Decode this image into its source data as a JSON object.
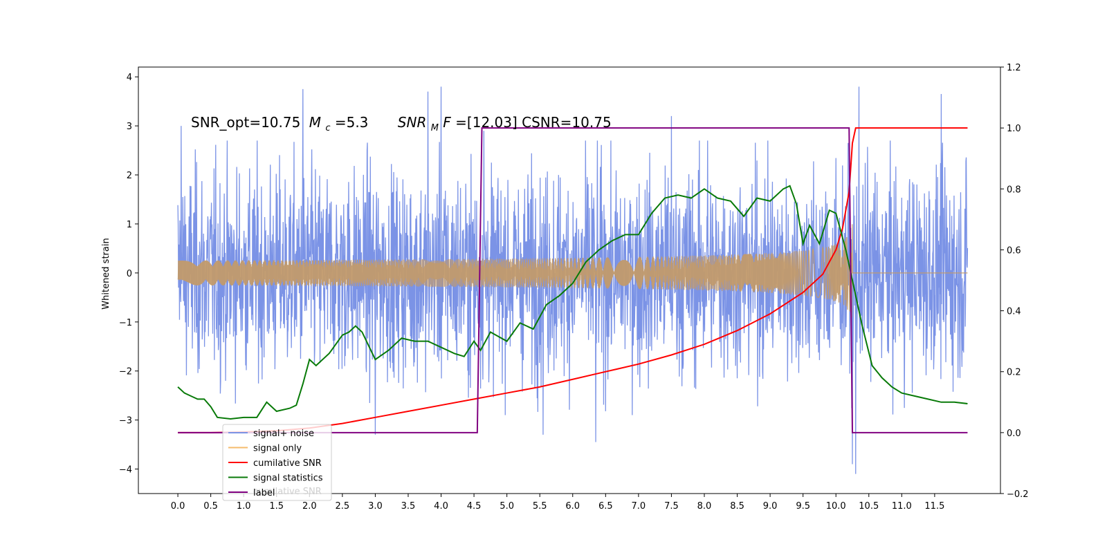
{
  "chart_data": {
    "type": "line",
    "ylabel": "Whitened strain",
    "xlim": [
      -0.6,
      12.5
    ],
    "ylim": [
      -4.5,
      4.2
    ],
    "y2lim": [
      -0.2,
      1.2
    ],
    "x_ticks": [
      "0.0",
      "0.5",
      "1.0",
      "1.5",
      "2.0",
      "2.5",
      "3.0",
      "3.5",
      "4.0",
      "4.5",
      "5.0",
      "5.5",
      "6.0",
      "6.5",
      "7.0",
      "7.5",
      "8.0",
      "8.5",
      "9.0",
      "9.5",
      "10.0",
      "10.5",
      "11.0",
      "11.5"
    ],
    "y_ticks": [
      "4",
      "3",
      "2",
      "1",
      "0",
      "−1",
      "−2",
      "−3",
      "−4"
    ],
    "y2_ticks": [
      "1.2",
      "1.0",
      "0.8",
      "0.6",
      "0.4",
      "0.2",
      "0.0",
      "−0.2"
    ],
    "annotation": {
      "snr_opt": "SNR_opt=10.75",
      "mc_symbol": "M",
      "mc_sub": "c",
      "mc_value": "=5.3",
      "mf_symbol": "SNR",
      "mf_sub": "M",
      "mf_tail": "F",
      "mf_value": "=[12.03] CSNR=10.75"
    },
    "legend": {
      "position": "lower-left",
      "entries": [
        {
          "label": "signal+ noise",
          "color": "#7b93e6"
        },
        {
          "label": "signal only",
          "color": "#f5bb6b"
        },
        {
          "label": "cumilative SNR",
          "color": "#ff0000"
        },
        {
          "label": "signal statistics",
          "color": "#087a08"
        },
        {
          "label": "label",
          "color": "#800080"
        }
      ],
      "ghost_text": "cumilative SNR"
    },
    "series": [
      {
        "name": "signal+ noise",
        "axis": "left",
        "color": "#7b93e6",
        "x_range": [
          0.0,
          12.0
        ],
        "noise_sigma": 1.05,
        "peaks": [
          {
            "x": 0.05,
            "y": 3.0
          },
          {
            "x": 1.9,
            "y": 3.75
          },
          {
            "x": 3.8,
            "y": 3.7
          },
          {
            "x": 4.0,
            "y": 3.8
          },
          {
            "x": 4.65,
            "y": 2.9
          },
          {
            "x": 7.5,
            "y": 3.2
          },
          {
            "x": 8.05,
            "y": 2.7
          },
          {
            "x": 10.35,
            "y": 3.8
          },
          {
            "x": 11.6,
            "y": 3.65
          },
          {
            "x": 10.25,
            "y": -3.9
          },
          {
            "x": 10.3,
            "y": -4.1
          },
          {
            "x": 6.35,
            "y": -3.45
          },
          {
            "x": 3.0,
            "y": -3.3
          },
          {
            "x": 5.55,
            "y": -3.3
          }
        ]
      },
      {
        "name": "signal only",
        "axis": "left",
        "color": "#f5bb6b",
        "x_range": [
          0.0,
          12.0
        ],
        "chirp_end": 10.25,
        "peak_amplitude": 1.0
      },
      {
        "name": "cumilative SNR",
        "axis": "right",
        "color": "#ff0000",
        "x": [
          0.0,
          0.5,
          1.0,
          1.5,
          2.0,
          2.5,
          3.0,
          3.5,
          4.0,
          4.5,
          5.0,
          5.5,
          6.0,
          6.5,
          7.0,
          7.5,
          8.0,
          8.5,
          9.0,
          9.5,
          9.8,
          10.0,
          10.1,
          10.2,
          10.25,
          10.3,
          11.0,
          11.5,
          12.0
        ],
        "y": [
          0.0,
          0.0,
          0.002,
          0.006,
          0.015,
          0.03,
          0.05,
          0.07,
          0.09,
          0.11,
          0.13,
          0.15,
          0.175,
          0.2,
          0.225,
          0.255,
          0.29,
          0.335,
          0.39,
          0.46,
          0.52,
          0.6,
          0.67,
          0.79,
          0.95,
          1.0,
          1.0,
          1.0,
          1.0
        ]
      },
      {
        "name": "signal statistics",
        "axis": "right",
        "color": "#087a08",
        "x": [
          0.0,
          0.1,
          0.2,
          0.3,
          0.4,
          0.5,
          0.6,
          0.8,
          1.0,
          1.2,
          1.35,
          1.5,
          1.7,
          1.8,
          1.9,
          2.0,
          2.1,
          2.3,
          2.5,
          2.6,
          2.7,
          2.8,
          3.0,
          3.2,
          3.4,
          3.6,
          3.8,
          4.0,
          4.2,
          4.35,
          4.5,
          4.6,
          4.75,
          5.0,
          5.2,
          5.4,
          5.6,
          5.8,
          6.0,
          6.2,
          6.4,
          6.6,
          6.8,
          7.0,
          7.2,
          7.4,
          7.6,
          7.8,
          8.0,
          8.2,
          8.4,
          8.6,
          8.8,
          9.0,
          9.2,
          9.3,
          9.4,
          9.5,
          9.6,
          9.75,
          9.9,
          10.0,
          10.15,
          10.25,
          10.4,
          10.55,
          10.7,
          10.85,
          11.0,
          11.2,
          11.4,
          11.6,
          11.8,
          12.0
        ],
        "y": [
          0.15,
          0.13,
          0.12,
          0.11,
          0.11,
          0.085,
          0.05,
          0.045,
          0.05,
          0.05,
          0.1,
          0.07,
          0.08,
          0.09,
          0.16,
          0.24,
          0.22,
          0.26,
          0.32,
          0.33,
          0.35,
          0.33,
          0.24,
          0.27,
          0.31,
          0.3,
          0.3,
          0.28,
          0.26,
          0.25,
          0.3,
          0.27,
          0.33,
          0.3,
          0.36,
          0.34,
          0.42,
          0.45,
          0.49,
          0.56,
          0.6,
          0.63,
          0.65,
          0.65,
          0.72,
          0.77,
          0.78,
          0.77,
          0.8,
          0.77,
          0.76,
          0.71,
          0.77,
          0.76,
          0.8,
          0.81,
          0.75,
          0.62,
          0.68,
          0.62,
          0.73,
          0.72,
          0.6,
          0.5,
          0.35,
          0.22,
          0.18,
          0.15,
          0.13,
          0.12,
          0.11,
          0.1,
          0.1,
          0.095
        ]
      },
      {
        "name": "label",
        "axis": "right",
        "color": "#800080",
        "x": [
          0.0,
          4.55,
          4.62,
          10.2,
          10.25,
          12.0
        ],
        "y": [
          0.0,
          0.0,
          1.0,
          1.0,
          0.0,
          0.0
        ]
      }
    ]
  }
}
